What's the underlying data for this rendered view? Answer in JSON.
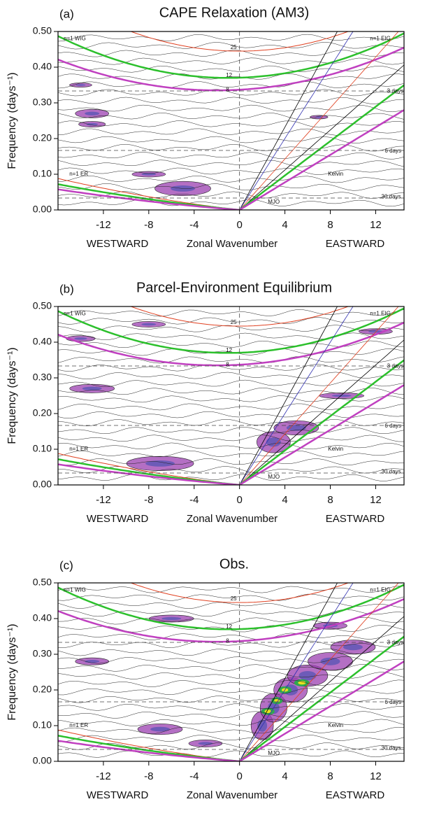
{
  "chart_data": [
    {
      "type": "contour",
      "panel_label": "(a)",
      "title": "CAPE Relaxation  (AM3)",
      "x_label": "Zonal Wavenumber",
      "west_label": "WESTWARD",
      "east_label": "EASTWARD",
      "y_label": "Frequency (days⁻¹)",
      "xlim": [
        -16,
        14.5
      ],
      "ylim": [
        0,
        0.5
      ],
      "xticks": [
        -12,
        -8,
        -4,
        0,
        4,
        8,
        12
      ],
      "yticks": [
        {
          "value": 0,
          "label": "0.00"
        },
        {
          "value": 0.1,
          "label": "0.10"
        },
        {
          "value": 0.2,
          "label": "0.20"
        },
        {
          "value": 0.3,
          "label": "0.30"
        },
        {
          "value": 0.4,
          "label": "0.40"
        },
        {
          "value": 0.5,
          "label": "0.50"
        }
      ],
      "annotations": [
        "n=1 WIG",
        "n=1 EIG",
        "3 days",
        "6 days",
        "30 days",
        "n=1 ER",
        "Kelvin",
        "MJO",
        "25",
        "12",
        "8"
      ]
    },
    {
      "type": "contour",
      "panel_label": "(b)",
      "title": "Parcel-Environment Equilibrium",
      "x_label": "Zonal Wavenumber",
      "west_label": "WESTWARD",
      "east_label": "EASTWARD",
      "y_label": "Frequency (days⁻¹)",
      "xlim": [
        -16,
        14.5
      ],
      "ylim": [
        0,
        0.5
      ],
      "xticks": [
        -12,
        -8,
        -4,
        0,
        4,
        8,
        12
      ],
      "yticks": [
        {
          "value": 0,
          "label": "0.00"
        },
        {
          "value": 0.1,
          "label": "0.10"
        },
        {
          "value": 0.2,
          "label": "0.20"
        },
        {
          "value": 0.3,
          "label": "0.30"
        },
        {
          "value": 0.4,
          "label": "0.40"
        },
        {
          "value": 0.5,
          "label": "0.50"
        }
      ],
      "annotations": [
        "n=1 WIG",
        "n=1 EIG",
        "3 days",
        "6 days",
        "30 days",
        "n=1 ER",
        "Kelvin",
        "MJO",
        "25",
        "12",
        "8"
      ]
    },
    {
      "type": "contour",
      "panel_label": "(c)",
      "title": "Obs.",
      "x_label": "Zonal Wavenumber",
      "west_label": "WESTWARD",
      "east_label": "EASTWARD",
      "y_label": "Frequency (days⁻¹)",
      "xlim": [
        -16,
        14.5
      ],
      "ylim": [
        0,
        0.5
      ],
      "xticks": [
        -12,
        -8,
        -4,
        0,
        4,
        8,
        12
      ],
      "yticks": [
        {
          "value": 0,
          "label": "0.00"
        },
        {
          "value": 0.1,
          "label": "0.10"
        },
        {
          "value": 0.2,
          "label": "0.20"
        },
        {
          "value": 0.3,
          "label": "0.30"
        },
        {
          "value": 0.4,
          "label": "0.40"
        },
        {
          "value": 0.5,
          "label": "0.50"
        }
      ],
      "annotations": [
        "n=1 WIG",
        "n=1 EIG",
        "3 days",
        "6 days",
        "30 days",
        "n=1 ER",
        "Kelvin",
        "MJO",
        "25",
        "12",
        "8"
      ]
    }
  ]
}
